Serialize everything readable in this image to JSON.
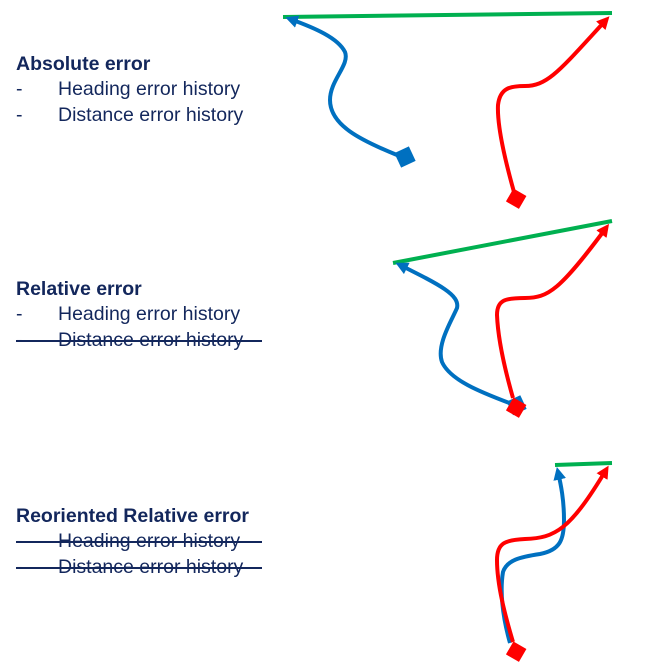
{
  "sections": [
    {
      "title": "Absolute error",
      "items": [
        {
          "bullet": "-",
          "text": "Heading error history",
          "struck": false
        },
        {
          "bullet": "-",
          "text": "Distance error history",
          "struck": false
        }
      ]
    },
    {
      "title": "Relative error",
      "items": [
        {
          "bullet": "-",
          "text": "Heading error history",
          "struck": false
        },
        {
          "bullet": "-",
          "text": "Distance error history",
          "struck": true
        }
      ]
    },
    {
      "title": "Reoriented Relative error",
      "items": [
        {
          "bullet": "-",
          "text": "Heading error history",
          "struck": true
        },
        {
          "bullet": "-",
          "text": "Distance error history",
          "struck": true
        }
      ]
    }
  ],
  "colors": {
    "text": "#13275c",
    "blue_path": "#0070c0",
    "red_path": "#ff0000",
    "error_line": "#00b050"
  }
}
